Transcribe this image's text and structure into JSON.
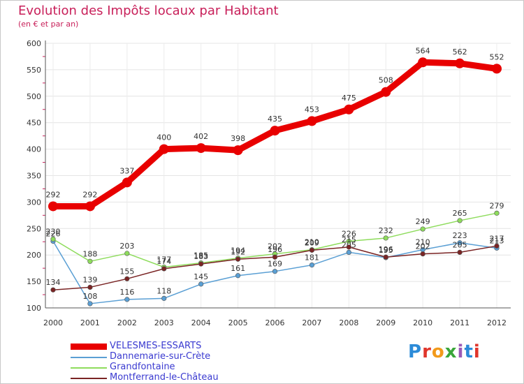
{
  "header": {
    "title": "Evolution des Impôts locaux par Habitant",
    "subtitle": "(en € et par an)"
  },
  "logo": {
    "text": "Proxiti",
    "letters": [
      {
        "ch": "P",
        "color": "#2c8bd8"
      },
      {
        "ch": "r",
        "color": "#e0352b"
      },
      {
        "ch": "o",
        "color": "#f29a1b"
      },
      {
        "ch": "x",
        "color": "#3aa63a"
      },
      {
        "ch": "i",
        "color": "#9b59b6"
      },
      {
        "ch": "t",
        "color": "#2c8bd8"
      },
      {
        "ch": "i",
        "color": "#e0352b"
      }
    ]
  },
  "chart_data": {
    "type": "line",
    "title": "Evolution des Impôts locaux par Habitant",
    "subtitle": "(en € et par an)",
    "x": [
      "2000",
      "2001",
      "2002",
      "2003",
      "2004",
      "2005",
      "2006",
      "2007",
      "2008",
      "2009",
      "2010",
      "2011",
      "2012"
    ],
    "ylim": [
      100,
      600
    ],
    "yticks": [
      100,
      150,
      200,
      250,
      300,
      350,
      400,
      450,
      500,
      550,
      600
    ],
    "grid": true,
    "legend_position": "bottom-left",
    "series": [
      {
        "name": "VELESMES-ESSARTS",
        "color": "#e80000",
        "bold": true,
        "values": [
          292,
          292,
          337,
          400,
          402,
          398,
          435,
          453,
          475,
          508,
          564,
          562,
          552
        ]
      },
      {
        "name": "Dannemarie-sur-Crète",
        "color": "#5a9fd4",
        "bold": false,
        "values": [
          226,
          108,
          116,
          118,
          145,
          161,
          169,
          181,
          205,
          195,
          210,
          223,
          213
        ]
      },
      {
        "name": "Grandfontaine",
        "color": "#8edc5c",
        "bold": false,
        "values": [
          230,
          188,
          203,
          177,
          185,
          194,
          202,
          210,
          226,
          232,
          249,
          265,
          279
        ]
      },
      {
        "name": "Montferrand-le-Château",
        "color": "#7a2424",
        "bold": false,
        "values": [
          134,
          139,
          155,
          174,
          183,
          192,
          196,
          209,
          215,
          196,
          202,
          205,
          217
        ]
      }
    ]
  }
}
